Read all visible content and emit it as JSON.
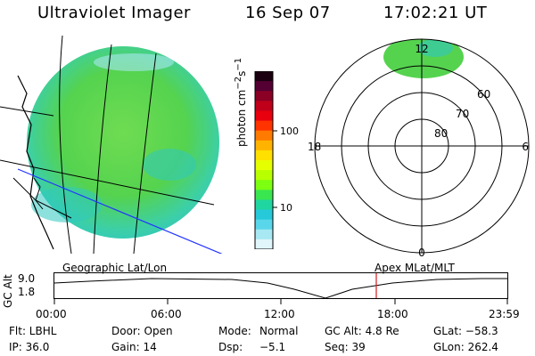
{
  "header": {
    "instrument": "Ultraviolet Imager",
    "date": "16 Sep 07",
    "time": "17:02:21 UT"
  },
  "colorbar": {
    "label_html": "photon cm<sup>−2</sup>s<sup>−1</sup>",
    "tick_labels": [
      "100",
      "10"
    ],
    "scale": "log",
    "colors": [
      "#1a0010",
      "#550033",
      "#8b0025",
      "#c0001a",
      "#e8000f",
      "#ff3300",
      "#ff7a00",
      "#ffb300",
      "#ffe000",
      "#e6ff00",
      "#b8ff00",
      "#7cff10",
      "#3ae650",
      "#20d6a0",
      "#26c9d9",
      "#5ad6ea",
      "#a8e8f2",
      "#e0f6fa"
    ]
  },
  "polar": {
    "mlt_labels": [
      "12",
      "18",
      "6",
      "0"
    ],
    "lat_labels": [
      "60",
      "70",
      "80"
    ]
  },
  "timeline": {
    "ylabel": "GC Alt",
    "yticks": [
      "9.0",
      "1.8"
    ],
    "left_title": "Geographic Lat/Lon",
    "right_title": "Apex MLat/MLT",
    "xticks": [
      "00:00",
      "06:00",
      "12:00",
      "18:00",
      "23:59"
    ],
    "marker_time": "17:02"
  },
  "status": {
    "flt": "Flt: LBHL",
    "ip": "IP: 36.0",
    "door": "Door: Open",
    "gain": "Gain: 14",
    "mode_label": "Mode:",
    "mode_value": "Normal",
    "dsp_label": "Dsp:",
    "dsp_value": "−5.1",
    "gcalt": "GC Alt: 4.8 Re",
    "seq": "Seq: 39",
    "glat": "GLat: −58.3",
    "glon": "GLon: 262.4"
  },
  "colors": {
    "aurora_green": "#55d34f",
    "aurora_cyan": "#2fc8c0",
    "marker_red": "#d11b1b",
    "terminator_blue": "#2233ff"
  }
}
